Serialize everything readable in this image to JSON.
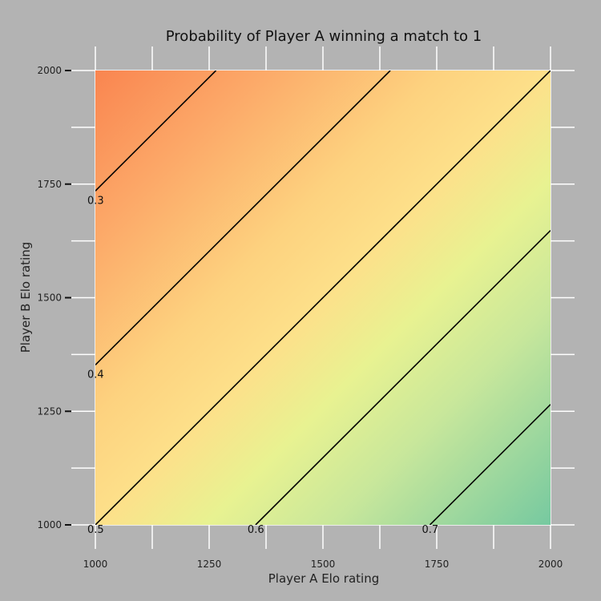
{
  "chart_data": {
    "type": "heatmap",
    "title": "Probability of Player A winning a match to 1",
    "xlabel": "Player A Elo rating",
    "ylabel": "Player B Elo rating",
    "xlim": [
      1000,
      2000
    ],
    "ylim": [
      1000,
      2000
    ],
    "x_ticks": [
      "1000",
      "1250",
      "1500",
      "1750",
      "2000"
    ],
    "y_ticks": [
      "1000",
      "1250",
      "1500",
      "1750",
      "2000"
    ],
    "grid": true,
    "colormap": "RdYlGn",
    "colors": {
      "background": "#b3b3b3",
      "grid": "#ffffff",
      "low": "#f98550",
      "mid": "#fde08a",
      "high": "#76c9a0",
      "contour": "#000000"
    },
    "contours": [
      {
        "level": 0.3,
        "label": "0.3",
        "rating_difference": -735
      },
      {
        "level": 0.4,
        "label": "0.4",
        "rating_difference": -352
      },
      {
        "level": 0.5,
        "label": "0.5",
        "rating_difference": 0
      },
      {
        "level": 0.6,
        "label": "0.6",
        "rating_difference": 352
      },
      {
        "level": 0.7,
        "label": "0.7",
        "rating_difference": 735
      }
    ]
  }
}
